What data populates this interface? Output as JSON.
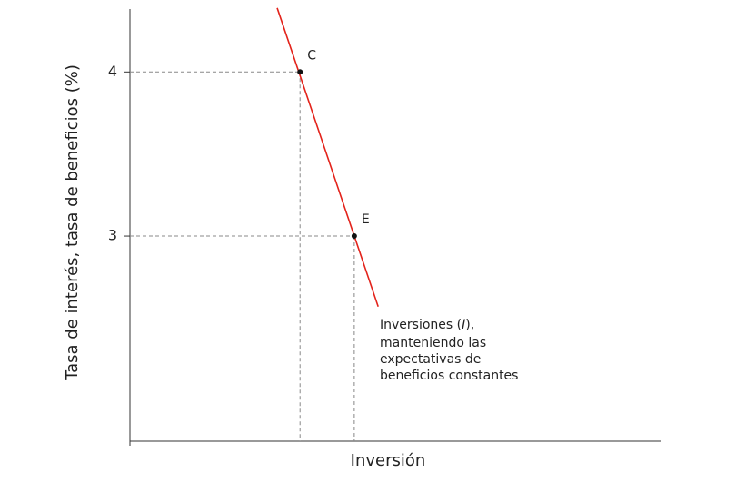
{
  "chart_data": {
    "type": "line",
    "x_label": "Inversión",
    "y_label": "Tasa de interés, tasa de beneficios (%)",
    "xlim": [
      0,
      10
    ],
    "ylim": [
      1.75,
      4.4
    ],
    "yticks": [
      3,
      4
    ],
    "series": [
      {
        "color": "#e3231b",
        "x": [
          2.77,
          4.67
        ],
        "values": [
          4.39,
          2.57
        ]
      }
    ],
    "points": [
      {
        "label": "C",
        "x": 3.2,
        "y": 4
      },
      {
        "label": "E",
        "x": 4.22,
        "y": 3
      }
    ],
    "annotation": [
      [
        "Inversiones (",
        "I",
        "),"
      ],
      [
        "manteniendo las"
      ],
      [
        "expectativas de"
      ],
      [
        "beneficios constantes"
      ]
    ]
  }
}
